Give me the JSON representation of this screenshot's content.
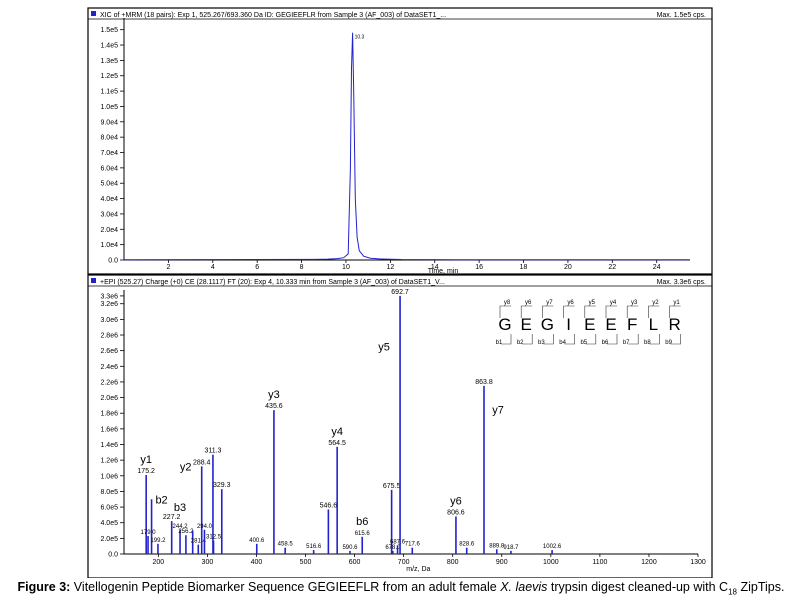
{
  "chart_data": [
    {
      "type": "line",
      "header_left": "XIC of +MRM (18 pairs): Exp 1, 525.267/693.360 Da ID: GEGIEEFLR from Sample 3 (AF_003) of DataSET1_...",
      "header_right": "Max. 1.5e5 cps.",
      "xlabel": "Time, min",
      "ylabel": "",
      "xlim": [
        0,
        25.5
      ],
      "ylim": [
        0,
        155000
      ],
      "x_ticks": [
        2,
        4,
        6,
        8,
        10,
        12,
        14,
        16,
        18,
        20,
        22,
        24
      ],
      "x_tick_labels": [
        "2",
        "4",
        "6",
        "8",
        "10",
        "12",
        "14",
        "16",
        "18",
        "20",
        "22",
        "24"
      ],
      "y_ticks": [
        0,
        10000,
        20000,
        30000,
        40000,
        50000,
        60000,
        70000,
        80000,
        90000,
        100000,
        110000,
        120000,
        130000,
        140000,
        150000
      ],
      "y_tick_labels": [
        "0.0",
        "1.0e4",
        "2.0e4",
        "3.0e4",
        "4.0e4",
        "5.0e4",
        "6.0e4",
        "7.0e4",
        "8.0e4",
        "9.0e4",
        "1.0e5",
        "1.1e5",
        "1.2e5",
        "1.3e5",
        "1.4e5",
        "1.5e5"
      ],
      "series": [
        {
          "x": [
            0,
            8.6,
            9.2,
            9.6,
            9.9,
            10.1,
            10.2,
            10.25,
            10.3,
            10.35,
            10.42,
            10.5,
            10.6,
            10.8,
            11.1,
            11.5,
            12.5,
            15,
            20,
            25.5
          ],
          "y": [
            200,
            400,
            600,
            900,
            1500,
            4000,
            60000,
            125000,
            148000,
            110000,
            40000,
            15000,
            6000,
            2500,
            1200,
            700,
            300,
            200,
            150,
            100
          ]
        }
      ],
      "annotations": [
        {
          "x": 10.3,
          "y": 148000,
          "text": "10.3"
        }
      ]
    },
    {
      "type": "bar",
      "header_left": "+EPI (525.27) Charge (+0) CE (28.1117) FT (20): Exp 4, 10.333 min from Sample 3 (AF_003) of DataSET1_V...",
      "header_right": "Max. 3.3e6 cps.",
      "xlabel": "m/z, Da",
      "ylabel": "",
      "xlim": [
        130,
        1300
      ],
      "ylim": [
        0,
        3350000
      ],
      "x_ticks": [
        200,
        300,
        400,
        500,
        600,
        700,
        800,
        900,
        1000,
        1100,
        1200,
        1300
      ],
      "x_tick_labels": [
        "200",
        "300",
        "400",
        "500",
        "600",
        "700",
        "800",
        "900",
        "1000",
        "1100",
        "1200",
        "1300"
      ],
      "y_ticks": [
        0,
        200000,
        400000,
        600000,
        800000,
        1000000,
        1200000,
        1400000,
        1600000,
        1800000,
        2000000,
        2200000,
        2400000,
        2600000,
        2800000,
        3000000,
        3200000,
        3300000
      ],
      "y_tick_labels": [
        "0.0",
        "2.0e5",
        "4.0e5",
        "6.0e5",
        "8.0e5",
        "1.0e6",
        "1.2e6",
        "1.4e6",
        "1.6e6",
        "1.8e6",
        "2.0e6",
        "2.2e6",
        "2.4e6",
        "2.6e6",
        "2.8e6",
        "3.0e6",
        "3.2e6",
        "3.3e6"
      ],
      "peaks": [
        {
          "mz": 175.2,
          "intensity": 1010000,
          "label": "175.2"
        },
        {
          "mz": 179.0,
          "intensity": 230000,
          "label": "179.0"
        },
        {
          "mz": 186.2,
          "intensity": 700000
        },
        {
          "mz": 199.2,
          "intensity": 130000,
          "label": "199.2"
        },
        {
          "mz": 227.2,
          "intensity": 420000,
          "label": "227.2"
        },
        {
          "mz": 244.2,
          "intensity": 310000,
          "label": "244.2"
        },
        {
          "mz": 256.2,
          "intensity": 240000,
          "label": "256.2"
        },
        {
          "mz": 270.0,
          "intensity": 300000
        },
        {
          "mz": 281.4,
          "intensity": 120000,
          "label": "281.4"
        },
        {
          "mz": 288.4,
          "intensity": 1120000,
          "label": "288.4"
        },
        {
          "mz": 294.0,
          "intensity": 310000,
          "label": "294.0"
        },
        {
          "mz": 311.3,
          "intensity": 1270000,
          "label": "311.3"
        },
        {
          "mz": 312.5,
          "intensity": 170000,
          "label": "312.5"
        },
        {
          "mz": 329.3,
          "intensity": 830000,
          "label": "329.3"
        },
        {
          "mz": 400.6,
          "intensity": 130000,
          "label": "400.6"
        },
        {
          "mz": 435.6,
          "intensity": 1840000,
          "label": "435.6"
        },
        {
          "mz": 458.5,
          "intensity": 80000,
          "label": "458.5"
        },
        {
          "mz": 516.6,
          "intensity": 50000,
          "label": "516.6"
        },
        {
          "mz": 546.6,
          "intensity": 570000,
          "label": "546.6"
        },
        {
          "mz": 564.5,
          "intensity": 1370000,
          "label": "564.5"
        },
        {
          "mz": 590.6,
          "intensity": 40000,
          "label": "590.6"
        },
        {
          "mz": 615.6,
          "intensity": 220000,
          "label": "615.6"
        },
        {
          "mz": 675.5,
          "intensity": 820000,
          "label": "675.5"
        },
        {
          "mz": 678.0,
          "intensity": 40000,
          "label": "678.0"
        },
        {
          "mz": 687.6,
          "intensity": 110000,
          "label": "687.6"
        },
        {
          "mz": 692.7,
          "intensity": 3300000,
          "label": "692.7"
        },
        {
          "mz": 717.6,
          "intensity": 80000,
          "label": "717.6"
        },
        {
          "mz": 806.6,
          "intensity": 480000,
          "label": "806.6"
        },
        {
          "mz": 828.6,
          "intensity": 80000,
          "label": "828.6"
        },
        {
          "mz": 863.8,
          "intensity": 2150000,
          "label": "863.8"
        },
        {
          "mz": 889.8,
          "intensity": 60000,
          "label": "889.8"
        },
        {
          "mz": 918.7,
          "intensity": 40000,
          "label": "918.7"
        },
        {
          "mz": 1002.6,
          "intensity": 50000,
          "label": "1002.6"
        }
      ],
      "ion_annotations": [
        {
          "ion": "y1",
          "mz": 175.2
        },
        {
          "ion": "b2",
          "mz": 186.2
        },
        {
          "ion": "y2",
          "mz": 288.4
        },
        {
          "ion": "b3",
          "mz": 244.2
        },
        {
          "ion": "y3",
          "mz": 435.6
        },
        {
          "ion": "y4",
          "mz": 564.5
        },
        {
          "ion": "b6",
          "mz": 615.6
        },
        {
          "ion": "y5",
          "mz": 692.7
        },
        {
          "ion": "y6",
          "mz": 806.6
        },
        {
          "ion": "y7",
          "mz": 863.8
        }
      ],
      "sequence": {
        "residues": [
          "G",
          "E",
          "G",
          "I",
          "E",
          "E",
          "F",
          "L",
          "R"
        ],
        "y_ions": [
          "y8",
          "y6",
          "y7",
          "y6",
          "y5",
          "y4",
          "y3",
          "y2",
          "y1"
        ],
        "b_ions": [
          "b1",
          "b2",
          "b3",
          "b4",
          "b5",
          "b6",
          "b7",
          "b8",
          "b9"
        ]
      }
    }
  ],
  "caption": {
    "label": "Figure 3:",
    "text_before": " Vitellogenin Peptide Biomarker Sequence GEGIEEFLR from an adult female ",
    "species": "X. laevis",
    "text_after": " trypsin digest cleaned-up with C",
    "subscript": "18",
    "text_end": " ZipTips."
  },
  "colors": {
    "trace": "#2222cc",
    "frame": "#000000",
    "text": "#000000"
  }
}
